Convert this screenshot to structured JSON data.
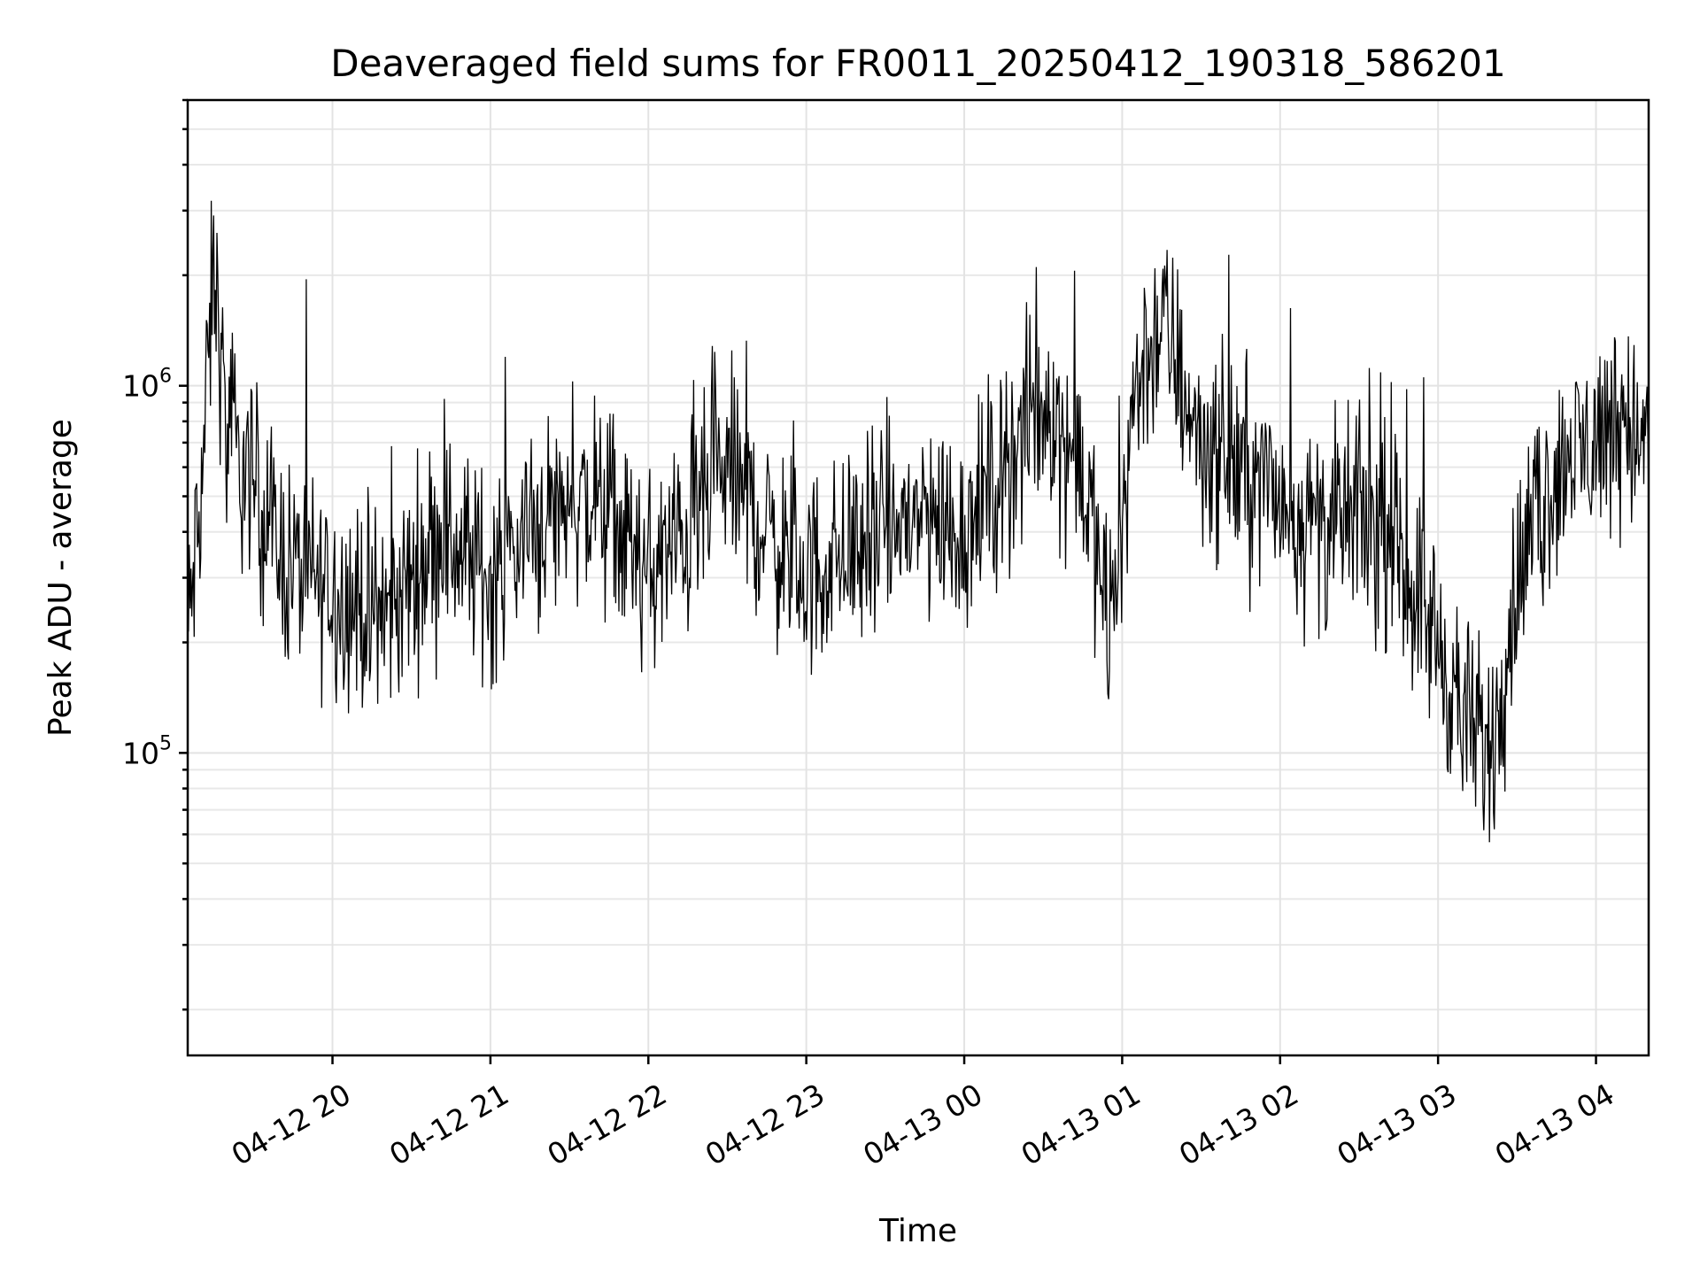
{
  "chart_data": {
    "type": "line",
    "title": "Deaveraged field sums for FR0011_20250412_190318_586201",
    "xlabel": "Time",
    "ylabel": "Peak ADU - average",
    "yscale": "log",
    "x_range": [
      "2025-04-12 19:05",
      "2025-04-13 04:20"
    ],
    "ylim": [
      15000,
      6000000
    ],
    "grid": true,
    "legend": "none",
    "x_ticks": [
      "04-12 20",
      "04-12 21",
      "04-12 22",
      "04-12 23",
      "04-13 00",
      "04-13 01",
      "04-13 02",
      "04-13 03",
      "04-13 04"
    ],
    "y_ticks": [
      {
        "base": "10",
        "exp": "5",
        "value": 100000
      },
      {
        "base": "10",
        "exp": "6",
        "value": 1000000
      }
    ],
    "series_color": "#000000",
    "series": [
      {
        "x": [
          "2025-04-12 19:05",
          "2025-04-12 19:10",
          "2025-04-12 19:15",
          "2025-04-12 19:20",
          "2025-04-12 19:25",
          "2025-04-12 19:30",
          "2025-04-12 19:40",
          "2025-04-12 19:50",
          "2025-04-12 20:00",
          "2025-04-12 20:10",
          "2025-04-12 20:20",
          "2025-04-12 20:30",
          "2025-04-12 20:40",
          "2025-04-12 20:50",
          "2025-04-12 21:00",
          "2025-04-12 21:15",
          "2025-04-12 21:30",
          "2025-04-12 21:45",
          "2025-04-12 22:00",
          "2025-04-12 22:15",
          "2025-04-12 22:30",
          "2025-04-12 22:45",
          "2025-04-12 23:00",
          "2025-04-12 23:15",
          "2025-04-12 23:30",
          "2025-04-12 23:45",
          "2025-04-13 00:00",
          "2025-04-13 00:15",
          "2025-04-13 00:30",
          "2025-04-13 00:45",
          "2025-04-13 00:55",
          "2025-04-13 01:05",
          "2025-04-13 01:15",
          "2025-04-13 01:30",
          "2025-04-13 01:45",
          "2025-04-13 02:00",
          "2025-04-13 02:15",
          "2025-04-13 02:30",
          "2025-04-13 02:45",
          "2025-04-13 03:00",
          "2025-04-13 03:10",
          "2025-04-13 03:20",
          "2025-04-13 03:30",
          "2025-04-13 03:45",
          "2025-04-13 04:00",
          "2025-04-13 04:10",
          "2025-04-13 04:20"
        ],
        "y": [
          200000,
          500000,
          2100000,
          700000,
          600000,
          550000,
          350000,
          300000,
          280000,
          250000,
          230000,
          300000,
          400000,
          350000,
          300000,
          400000,
          500000,
          450000,
          300000,
          400000,
          600000,
          400000,
          300000,
          350000,
          400000,
          450000,
          400000,
          600000,
          900000,
          600000,
          200000,
          1000000,
          1500000,
          700000,
          600000,
          500000,
          400000,
          450000,
          350000,
          200000,
          120000,
          100000,
          300000,
          600000,
          700000,
          900000,
          600000
        ]
      }
    ]
  }
}
